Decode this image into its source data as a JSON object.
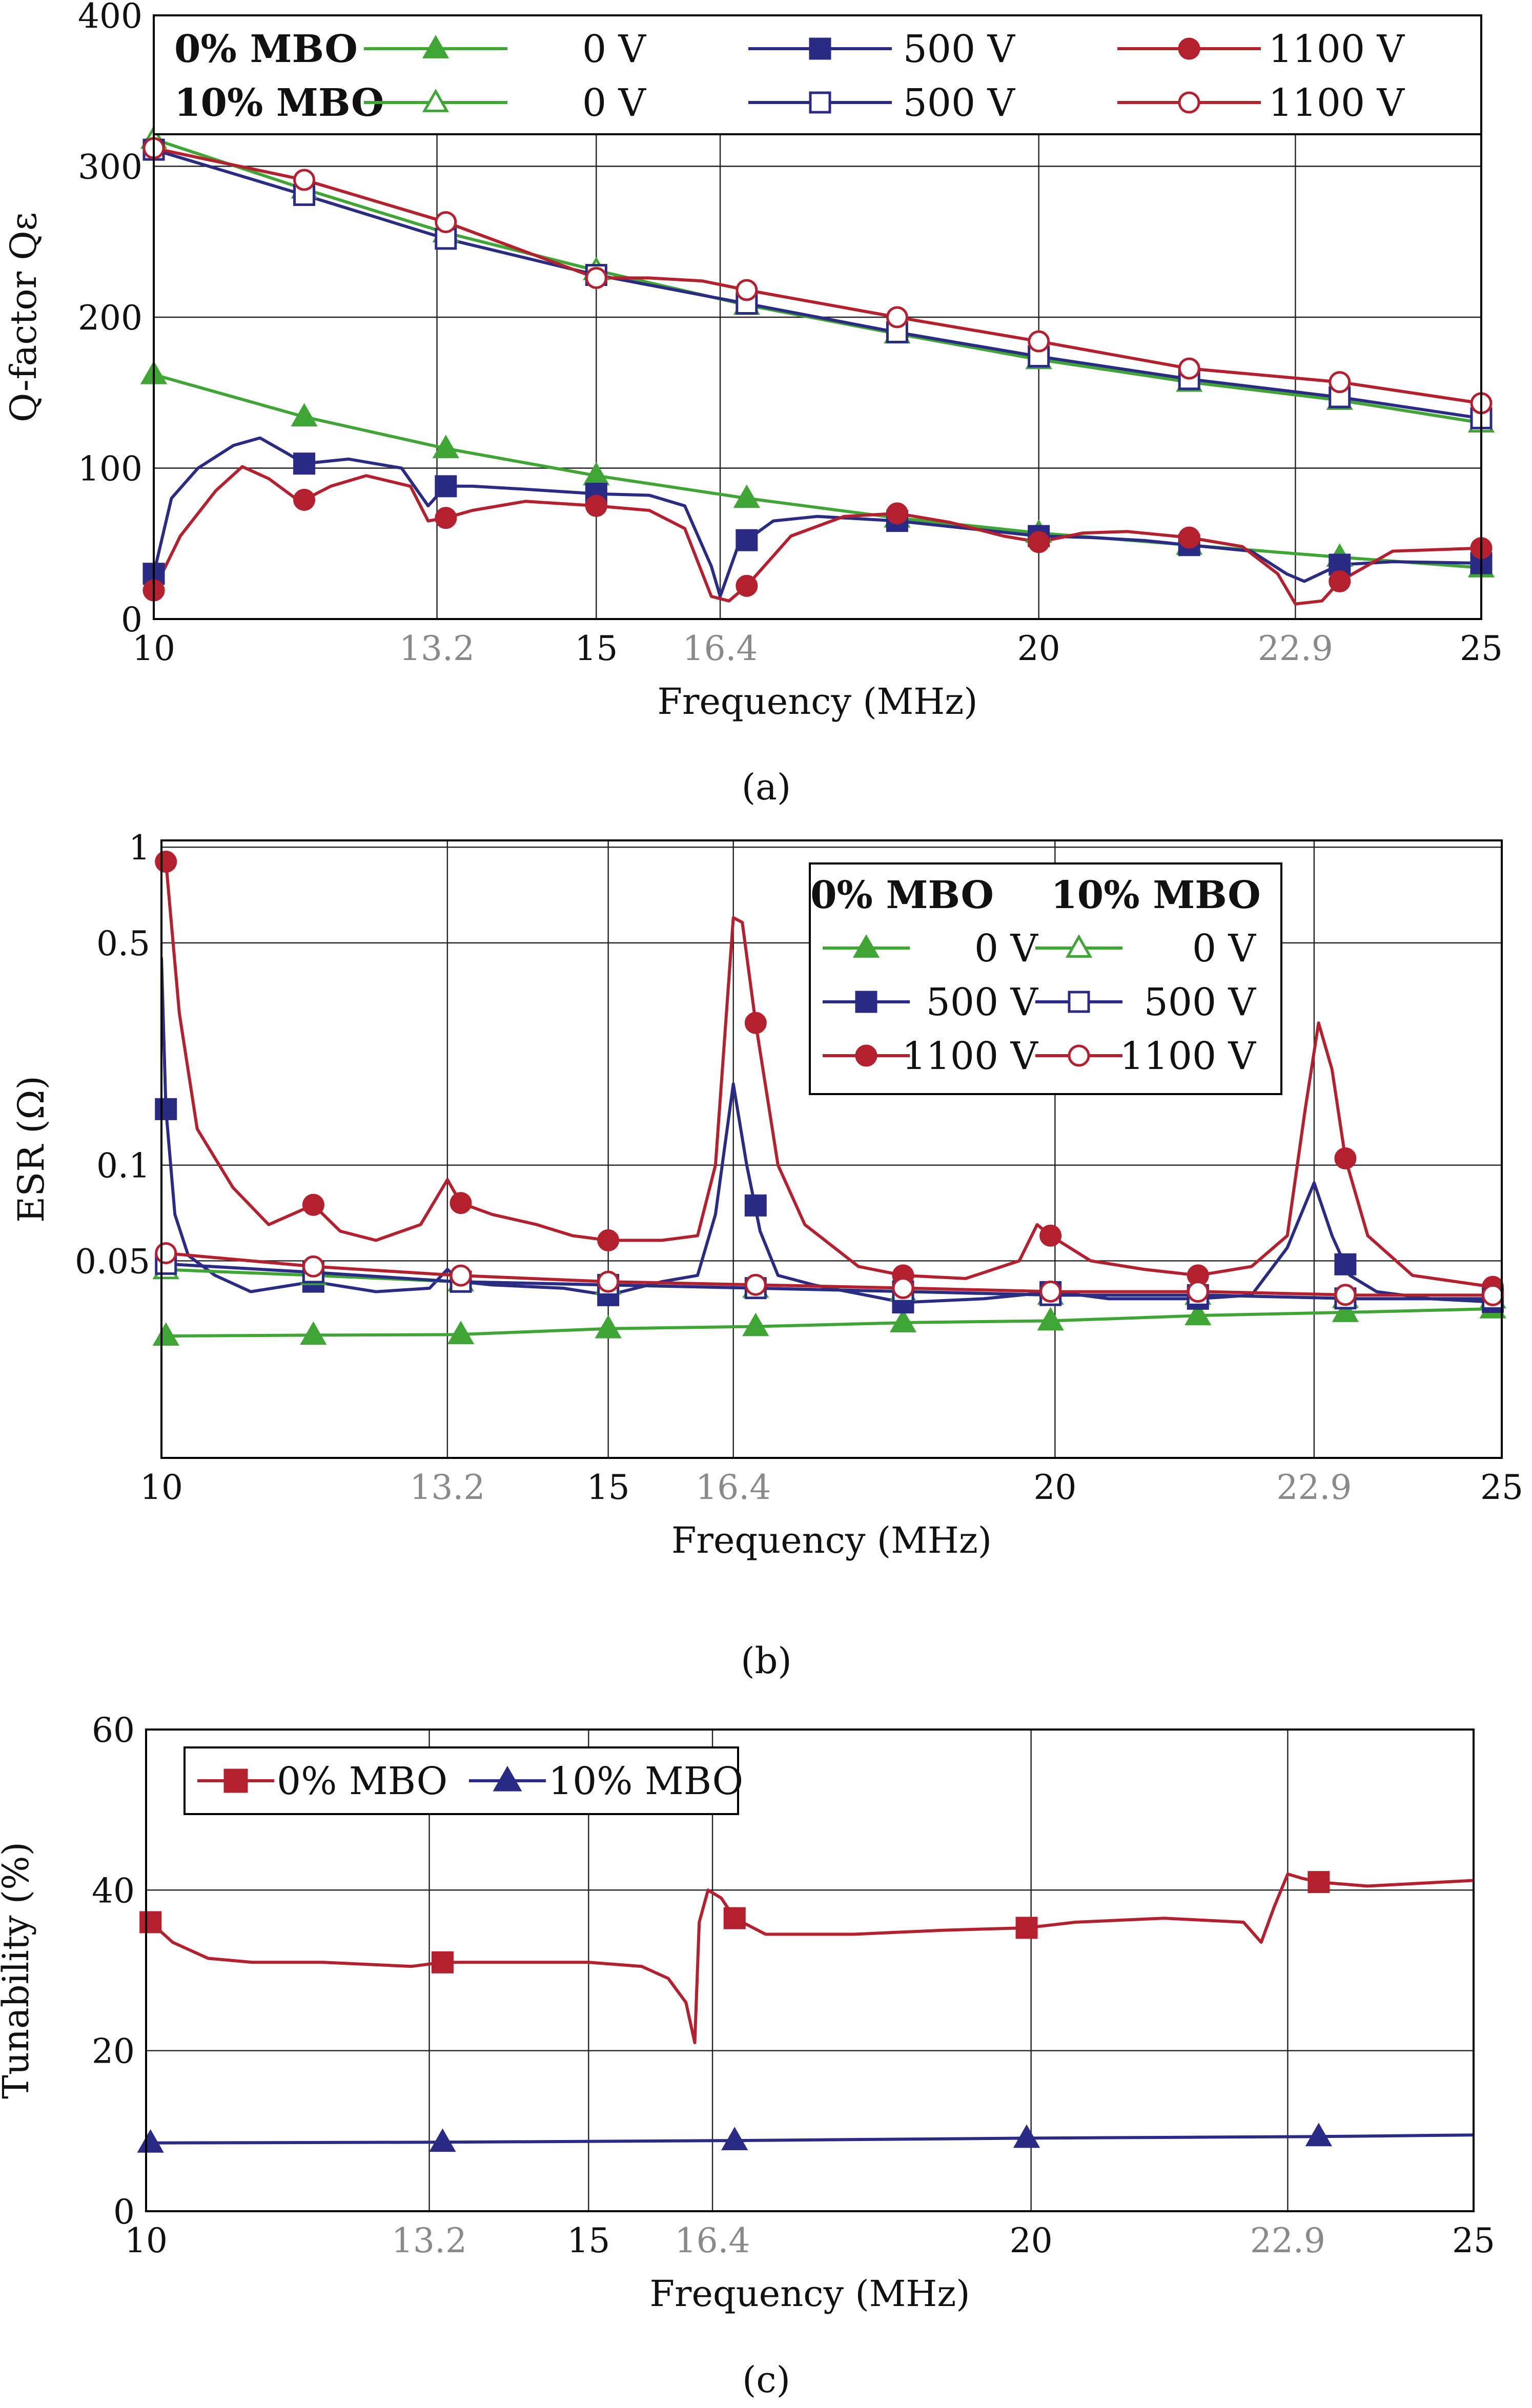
{
  "colors": {
    "green": "#3fa535",
    "blue": "#2a2b84",
    "red": "#b5202e",
    "axis": "#000000",
    "gray_tick": "#8a8a8a"
  },
  "chart_data": [
    {
      "id": "a",
      "type": "line",
      "caption": "(a)",
      "xlabel": "Frequency (MHz)",
      "ylabel": "Q-factor Qε",
      "xlim": [
        10,
        25
      ],
      "ylim": [
        0,
        400
      ],
      "yscale": "linear",
      "xticks": [
        {
          "v": 10,
          "t": "10",
          "gray": false
        },
        {
          "v": 13.2,
          "t": "13.2",
          "gray": true
        },
        {
          "v": 15,
          "t": "15",
          "gray": false
        },
        {
          "v": 16.4,
          "t": "16.4",
          "gray": true
        },
        {
          "v": 20,
          "t": "20",
          "gray": false
        },
        {
          "v": 22.9,
          "t": "22.9",
          "gray": true
        },
        {
          "v": 25,
          "t": "25",
          "gray": false
        }
      ],
      "yticks": [
        {
          "v": 0,
          "t": "0"
        },
        {
          "v": 100,
          "t": "100"
        },
        {
          "v": 200,
          "t": "200"
        },
        {
          "v": 300,
          "t": "300"
        },
        {
          "v": 400,
          "t": "400"
        }
      ],
      "legend": {
        "row_labels": [
          "0% MBO",
          "10% MBO"
        ],
        "entries": [
          {
            "label": "0 V",
            "color": "green",
            "marker": "triangle"
          },
          {
            "label": "500 V",
            "color": "blue",
            "marker": "square"
          },
          {
            "label": "1100 V",
            "color": "red",
            "marker": "circle"
          }
        ]
      },
      "series": [
        {
          "name": "0% MBO 0 V",
          "color": "green",
          "marker": "triangle",
          "filled": true,
          "x": [
            10,
            11.7,
            13.3,
            15,
            16.7,
            18.4,
            20,
            21.7,
            23.4,
            25
          ],
          "y": [
            162,
            134,
            113,
            95,
            80,
            67,
            57,
            49,
            41,
            34
          ],
          "mx": [
            10,
            11.7,
            13.3,
            15,
            16.7,
            18.4,
            20,
            21.7,
            23.4,
            25
          ]
        },
        {
          "name": "0% MBO 500 V",
          "color": "blue",
          "marker": "square",
          "filled": true,
          "x": [
            10,
            10.2,
            10.5,
            10.9,
            11.2,
            11.5,
            11.7,
            12.2,
            12.8,
            13.1,
            13.3,
            13.6,
            14.2,
            15,
            15.6,
            16,
            16.3,
            16.4,
            16.6,
            17,
            17.5,
            18.4,
            19.2,
            20,
            20.6,
            21.2,
            21.7,
            22.4,
            22.8,
            23,
            23.4,
            24,
            25
          ],
          "y": [
            30,
            80,
            100,
            115,
            120,
            110,
            103,
            106,
            100,
            75,
            88,
            88,
            86,
            83,
            82,
            75,
            35,
            15,
            48,
            65,
            68,
            65,
            60,
            55,
            54,
            52,
            49,
            45,
            30,
            25,
            36,
            38,
            37
          ],
          "mx": [
            10,
            11.7,
            13.3,
            15,
            16.7,
            18.4,
            20,
            21.7,
            23.4,
            25
          ]
        },
        {
          "name": "0% MBO 1100 V",
          "color": "red",
          "marker": "circle",
          "filled": true,
          "x": [
            10,
            10.3,
            10.7,
            11,
            11.3,
            11.6,
            11.7,
            12,
            12.4,
            12.9,
            13.1,
            13.3,
            13.6,
            14.2,
            15,
            15.6,
            16,
            16.3,
            16.5,
            16.7,
            17.2,
            17.8,
            18.4,
            19,
            19.6,
            20,
            20.5,
            21,
            21.7,
            22.3,
            22.7,
            22.9,
            23.2,
            23.4,
            24,
            25
          ],
          "y": [
            19,
            55,
            85,
            101,
            93,
            80,
            79,
            88,
            95,
            88,
            65,
            67,
            72,
            78,
            75,
            72,
            60,
            15,
            12,
            22,
            55,
            68,
            70,
            64,
            55,
            51,
            57,
            58,
            54,
            48,
            30,
            10,
            12,
            25,
            45,
            47
          ],
          "mx": [
            10,
            11.7,
            13.3,
            15,
            16.7,
            18.4,
            20,
            21.7,
            23.4,
            25
          ]
        },
        {
          "name": "10% MBO 0 V",
          "color": "green",
          "marker": "triangle",
          "filled": false,
          "x": [
            10,
            11.7,
            13.3,
            15,
            16.7,
            18.4,
            20,
            21.7,
            23.4,
            25
          ],
          "y": [
            318,
            285,
            256,
            231,
            208,
            189,
            172,
            157,
            145,
            130
          ],
          "mx": [
            10,
            11.7,
            13.3,
            15,
            16.7,
            18.4,
            20,
            21.7,
            23.4,
            25
          ]
        },
        {
          "name": "10% MBO 500 V",
          "color": "blue",
          "marker": "square",
          "filled": false,
          "x": [
            10,
            11.7,
            13.3,
            15,
            16.7,
            18.4,
            20,
            21.7,
            23.4,
            25
          ],
          "y": [
            311,
            281,
            252,
            228,
            209,
            190,
            174,
            159,
            147,
            133
          ],
          "mx": [
            10,
            11.7,
            13.3,
            15,
            16.7,
            18.4,
            20,
            21.7,
            23.4,
            25
          ]
        },
        {
          "name": "10% MBO 1100 V",
          "color": "red",
          "marker": "circle",
          "filled": false,
          "x": [
            10,
            11.7,
            13.3,
            15,
            15.6,
            16.2,
            16.7,
            18.4,
            20,
            21.7,
            23.4,
            25
          ],
          "y": [
            312,
            291,
            263,
            226,
            226,
            224,
            218,
            200,
            184,
            166,
            157,
            143
          ],
          "mx": [
            10,
            11.7,
            13.3,
            15,
            16.7,
            18.4,
            20,
            21.7,
            23.4,
            25
          ]
        }
      ]
    },
    {
      "id": "b",
      "type": "line",
      "caption": "(b)",
      "xlabel": "Frequency (MHz)",
      "ylabel": "ESR (Ω)",
      "xlim": [
        10,
        25
      ],
      "ylim": [
        0.012,
        1.05
      ],
      "yscale": "log",
      "xticks": [
        {
          "v": 10,
          "t": "10",
          "gray": false
        },
        {
          "v": 13.2,
          "t": "13.2",
          "gray": true
        },
        {
          "v": 15,
          "t": "15",
          "gray": false
        },
        {
          "v": 16.4,
          "t": "16.4",
          "gray": true
        },
        {
          "v": 20,
          "t": "20",
          "gray": false
        },
        {
          "v": 22.9,
          "t": "22.9",
          "gray": true
        },
        {
          "v": 25,
          "t": "25",
          "gray": false
        }
      ],
      "yticks": [
        {
          "v": 0.05,
          "t": "0.05"
        },
        {
          "v": 0.1,
          "t": "0.1"
        },
        {
          "v": 0.5,
          "t": "0.5"
        },
        {
          "v": 1,
          "t": "1"
        }
      ],
      "legend": {
        "col_headers": [
          "0% MBO",
          "10% MBO"
        ],
        "entries": [
          {
            "label": "0 V",
            "color": "green",
            "marker": "triangle"
          },
          {
            "label": "500 V",
            "color": "blue",
            "marker": "square"
          },
          {
            "label": "1100 V",
            "color": "red",
            "marker": "circle"
          }
        ]
      },
      "series": [
        {
          "name": "0% MBO 0 V",
          "color": "green",
          "marker": "triangle",
          "filled": true,
          "x": [
            10,
            11.7,
            13.3,
            15,
            16.7,
            18.4,
            20,
            21.7,
            23.4,
            25
          ],
          "y": [
            0.029,
            0.0292,
            0.0293,
            0.0306,
            0.0311,
            0.032,
            0.0324,
            0.0337,
            0.0345,
            0.0354
          ],
          "mx": [
            10.05,
            11.7,
            13.35,
            15,
            16.65,
            18.3,
            19.95,
            21.6,
            23.25,
            24.9
          ]
        },
        {
          "name": "0% MBO 500 V",
          "color": "blue",
          "marker": "square",
          "filled": true,
          "x": [
            10,
            10.05,
            10.15,
            10.3,
            10.6,
            11,
            11.7,
            12.4,
            13,
            13.2,
            13.35,
            13.7,
            14.5,
            15,
            15.6,
            16,
            16.2,
            16.4,
            16.55,
            16.7,
            16.9,
            17.3,
            18.3,
            19.2,
            20,
            20.6,
            21.2,
            21.6,
            22.2,
            22.6,
            22.9,
            23.1,
            23.3,
            23.6,
            24.2,
            25
          ],
          "y": [
            0.45,
            0.15,
            0.07,
            0.052,
            0.045,
            0.04,
            0.043,
            0.04,
            0.041,
            0.047,
            0.043,
            0.042,
            0.041,
            0.039,
            0.043,
            0.045,
            0.07,
            0.18,
            0.1,
            0.062,
            0.045,
            0.042,
            0.037,
            0.038,
            0.04,
            0.038,
            0.038,
            0.038,
            0.039,
            0.055,
            0.088,
            0.06,
            0.045,
            0.04,
            0.038,
            0.037
          ],
          "mx": [
            10.05,
            11.7,
            13.35,
            15,
            16.65,
            18.3,
            19.95,
            21.6,
            23.25,
            24.9
          ]
        },
        {
          "name": "0% MBO 1100 V",
          "color": "red",
          "marker": "circle",
          "filled": true,
          "x": [
            10,
            10.05,
            10.2,
            10.4,
            10.8,
            11.2,
            11.7,
            12,
            12.4,
            12.9,
            13.2,
            13.35,
            13.7,
            14.2,
            14.6,
            15,
            15.6,
            16,
            16.2,
            16.4,
            16.5,
            16.65,
            16.9,
            17.2,
            17.8,
            18.3,
            19,
            19.6,
            19.8,
            19.95,
            20.4,
            21,
            21.6,
            22.2,
            22.6,
            22.8,
            22.95,
            23.1,
            23.25,
            23.5,
            24,
            25
          ],
          "y": [
            0.96,
            0.9,
            0.3,
            0.13,
            0.085,
            0.065,
            0.075,
            0.062,
            0.058,
            0.065,
            0.09,
            0.076,
            0.07,
            0.065,
            0.06,
            0.058,
            0.058,
            0.06,
            0.1,
            0.6,
            0.58,
            0.28,
            0.1,
            0.065,
            0.048,
            0.045,
            0.044,
            0.05,
            0.065,
            0.06,
            0.05,
            0.047,
            0.045,
            0.048,
            0.06,
            0.15,
            0.28,
            0.2,
            0.105,
            0.06,
            0.045,
            0.041
          ],
          "mx": [
            10.05,
            11.7,
            13.35,
            15,
            16.65,
            18.3,
            19.95,
            21.6,
            23.25,
            24.9
          ]
        },
        {
          "name": "10% MBO 0 V",
          "color": "green",
          "marker": "triangle",
          "filled": false,
          "x": [
            10,
            11.7,
            13.3,
            15,
            16.7,
            18.4,
            20,
            21.7,
            23.4,
            25
          ],
          "y": [
            0.047,
            0.045,
            0.043,
            0.042,
            0.041,
            0.04,
            0.039,
            0.039,
            0.038,
            0.038
          ],
          "mx": [
            10.05,
            11.7,
            13.35,
            15,
            16.65,
            18.3,
            19.95,
            21.6,
            23.25,
            24.9
          ]
        },
        {
          "name": "10% MBO 500 V",
          "color": "blue",
          "marker": "square",
          "filled": false,
          "x": [
            10,
            11.7,
            13.3,
            15,
            16.7,
            18.4,
            20,
            21.7,
            23.4,
            25
          ],
          "y": [
            0.049,
            0.046,
            0.043,
            0.042,
            0.041,
            0.04,
            0.039,
            0.039,
            0.038,
            0.038
          ],
          "mx": [
            10.05,
            11.7,
            13.35,
            15,
            16.65,
            18.3,
            19.95,
            21.6,
            23.25,
            24.9
          ]
        },
        {
          "name": "10% MBO 1100 V",
          "color": "red",
          "marker": "circle",
          "filled": false,
          "x": [
            10,
            11.7,
            13.3,
            15,
            16.7,
            18.4,
            20,
            21.7,
            23.4,
            25
          ],
          "y": [
            0.053,
            0.048,
            0.045,
            0.043,
            0.042,
            0.041,
            0.04,
            0.04,
            0.039,
            0.039
          ],
          "mx": [
            10.05,
            11.7,
            13.35,
            15,
            16.65,
            18.3,
            19.95,
            21.6,
            23.25,
            24.9
          ]
        }
      ]
    },
    {
      "id": "c",
      "type": "line",
      "caption": "(c)",
      "xlabel": "Frequency (MHz)",
      "ylabel": "Tunability (%)",
      "xlim": [
        10,
        25
      ],
      "ylim": [
        0,
        60
      ],
      "yscale": "linear",
      "xticks": [
        {
          "v": 10,
          "t": "10",
          "gray": false
        },
        {
          "v": 13.2,
          "t": "13.2",
          "gray": true
        },
        {
          "v": 15,
          "t": "15",
          "gray": false
        },
        {
          "v": 16.4,
          "t": "16.4",
          "gray": true
        },
        {
          "v": 20,
          "t": "20",
          "gray": false
        },
        {
          "v": 22.9,
          "t": "22.9",
          "gray": true
        },
        {
          "v": 25,
          "t": "25",
          "gray": false
        }
      ],
      "yticks": [
        {
          "v": 0,
          "t": "0"
        },
        {
          "v": 20,
          "t": "20"
        },
        {
          "v": 40,
          "t": "40"
        },
        {
          "v": 60,
          "t": "60"
        }
      ],
      "legend": {
        "entries": [
          {
            "label": "0% MBO",
            "color": "red",
            "marker": "square"
          },
          {
            "label": "10% MBO",
            "color": "blue",
            "marker": "triangle"
          }
        ]
      },
      "series": [
        {
          "name": "0% MBO",
          "color": "red",
          "marker": "square",
          "filled": true,
          "x": [
            10,
            10.3,
            10.7,
            11.2,
            12,
            13,
            13.35,
            14,
            15,
            15.6,
            15.9,
            16.1,
            16.2,
            16.25,
            16.35,
            16.5,
            16.65,
            17,
            18,
            19,
            19.95,
            20.5,
            21.5,
            22.4,
            22.6,
            22.75,
            22.9,
            23.05,
            23.25,
            23.8,
            25
          ],
          "y": [
            36.5,
            33.5,
            31.5,
            31,
            31,
            30.5,
            31,
            31,
            31,
            30.5,
            29,
            26,
            21,
            36,
            40,
            39,
            36.5,
            34.5,
            34.5,
            35,
            35.3,
            36,
            36.5,
            36,
            33.5,
            38,
            42,
            41.5,
            41,
            40.5,
            41.2
          ],
          "mx": [
            10.05,
            13.35,
            16.65,
            19.95,
            23.25
          ]
        },
        {
          "name": "10% MBO",
          "color": "blue",
          "marker": "triangle",
          "filled": true,
          "x": [
            10,
            13.35,
            16.65,
            19.95,
            23.25,
            25
          ],
          "y": [
            8.5,
            8.6,
            8.8,
            9.1,
            9.3,
            9.5
          ],
          "mx": [
            10.05,
            13.35,
            16.65,
            19.95,
            23.25
          ]
        }
      ]
    }
  ]
}
